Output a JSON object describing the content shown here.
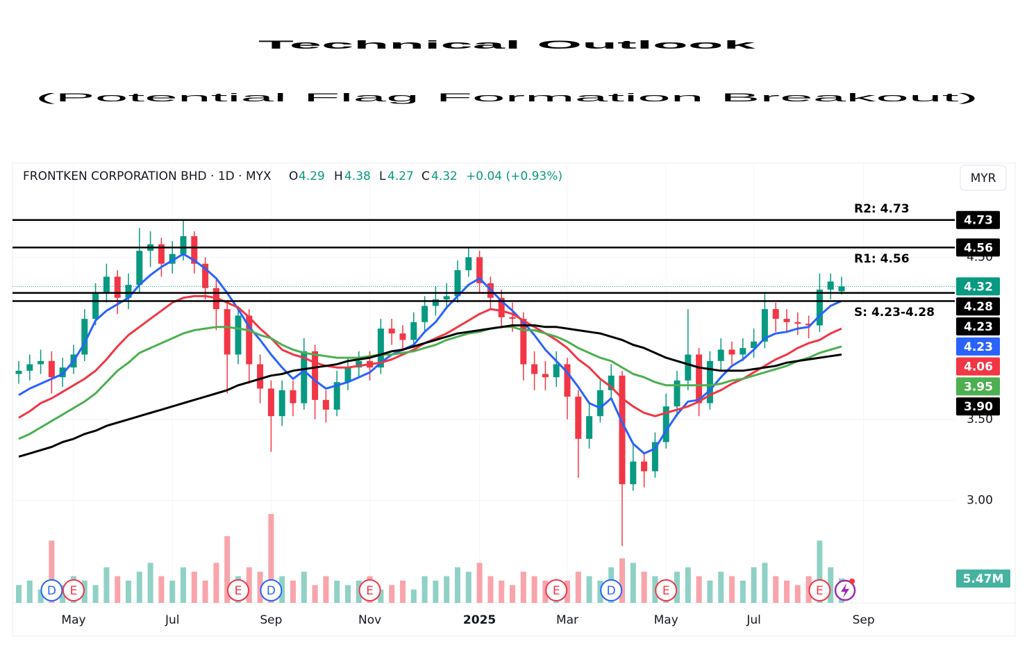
{
  "title": "Technical Outlook",
  "subtitle": "(Potential Flag Formation Breakout)",
  "chart_data": {
    "type": "candlestick",
    "symbol": "FRONTKEN CORPORATION BHD · 1D · MYX",
    "ohlc_letters": [
      "O",
      "H",
      "L",
      "C"
    ],
    "change": "+0.04 (+0.93%)",
    "currency": "MYR",
    "categories": [
      null,
      null,
      null,
      null,
      null,
      "May",
      null,
      null,
      null,
      null,
      null,
      null,
      null,
      null,
      "Jul",
      null,
      null,
      null,
      null,
      null,
      null,
      null,
      null,
      "Sep",
      null,
      null,
      null,
      null,
      null,
      null,
      null,
      null,
      "Nov",
      null,
      null,
      null,
      null,
      null,
      null,
      null,
      null,
      null,
      "2025",
      null,
      null,
      null,
      null,
      null,
      null,
      null,
      "Mar",
      null,
      null,
      null,
      null,
      null,
      null,
      null,
      null,
      "May",
      null,
      null,
      null,
      null,
      null,
      null,
      null,
      "Jul",
      null,
      null,
      null,
      null,
      null,
      null,
      null,
      null,
      null,
      "Sep"
    ],
    "open": [
      3.78,
      3.8,
      3.84,
      3.86,
      3.76,
      3.82,
      3.9,
      4.12,
      4.28,
      4.38,
      4.25,
      4.33,
      4.54,
      4.58,
      4.46,
      4.52,
      4.63,
      4.46,
      4.31,
      4.18,
      3.9,
      4.14,
      3.84,
      3.69,
      3.52,
      3.68,
      3.6,
      3.92,
      3.62,
      3.56,
      3.73,
      3.82,
      3.86,
      3.82,
      4.06,
      4.03,
      3.99,
      4.1,
      4.2,
      4.24,
      4.26,
      4.42,
      4.5,
      4.34,
      4.25,
      4.13,
      4.12,
      3.84,
      3.78,
      3.76,
      3.84,
      3.64,
      3.38,
      3.52,
      3.68,
      3.77,
      3.1,
      3.24,
      3.18,
      3.36,
      3.58,
      3.74,
      3.9,
      3.6,
      3.86,
      3.93,
      3.9,
      3.94,
      3.98,
      4.18,
      4.12,
      4.1,
      4.09,
      4.08,
      4.3,
      4.29,
      null,
      null
    ],
    "high": [
      3.86,
      3.9,
      3.93,
      3.92,
      3.88,
      3.96,
      4.18,
      4.34,
      4.46,
      4.42,
      4.4,
      4.68,
      4.66,
      4.62,
      4.6,
      4.73,
      4.66,
      4.5,
      4.36,
      4.22,
      4.2,
      4.18,
      3.9,
      3.74,
      3.74,
      3.74,
      4.0,
      3.96,
      3.68,
      3.8,
      3.88,
      3.92,
      3.92,
      4.12,
      4.12,
      4.08,
      4.16,
      4.26,
      4.32,
      4.34,
      4.48,
      4.56,
      4.54,
      4.38,
      4.3,
      4.22,
      4.16,
      3.92,
      3.86,
      3.92,
      3.88,
      3.68,
      3.6,
      3.74,
      3.84,
      3.8,
      3.36,
      3.3,
      3.42,
      3.66,
      3.8,
      4.18,
      3.94,
      3.92,
      4.0,
      3.98,
      4.0,
      4.06,
      4.28,
      4.22,
      4.18,
      4.16,
      4.14,
      4.4,
      4.4,
      4.38,
      null,
      null
    ],
    "low": [
      3.72,
      3.74,
      3.78,
      3.66,
      3.7,
      3.78,
      3.86,
      4.08,
      4.22,
      4.15,
      4.18,
      4.28,
      4.44,
      4.38,
      4.4,
      4.48,
      4.4,
      4.24,
      4.05,
      3.66,
      3.84,
      3.72,
      3.6,
      3.3,
      3.46,
      3.52,
      3.56,
      3.5,
      3.48,
      3.52,
      3.68,
      3.76,
      3.74,
      3.78,
      3.96,
      3.92,
      3.94,
      4.04,
      4.14,
      4.18,
      4.22,
      4.38,
      4.28,
      4.18,
      4.06,
      4.04,
      3.74,
      3.68,
      3.68,
      3.7,
      3.5,
      3.14,
      3.32,
      3.48,
      3.62,
      2.72,
      3.06,
      3.08,
      3.14,
      3.32,
      3.52,
      3.68,
      3.52,
      3.56,
      3.8,
      3.84,
      3.86,
      3.88,
      3.94,
      4.04,
      4.04,
      4.02,
      4.0,
      4.04,
      4.24,
      4.27,
      null,
      null
    ],
    "close": [
      3.8,
      3.84,
      3.86,
      3.76,
      3.82,
      3.9,
      4.12,
      4.28,
      4.38,
      4.25,
      4.33,
      4.54,
      4.58,
      4.46,
      4.52,
      4.63,
      4.46,
      4.31,
      4.18,
      3.9,
      4.14,
      3.84,
      3.69,
      3.52,
      3.68,
      3.6,
      3.92,
      3.62,
      3.56,
      3.73,
      3.82,
      3.86,
      3.82,
      4.06,
      4.03,
      3.99,
      4.1,
      4.2,
      4.24,
      4.26,
      4.42,
      4.5,
      4.34,
      4.25,
      4.13,
      4.12,
      3.84,
      3.78,
      3.76,
      3.84,
      3.64,
      3.38,
      3.52,
      3.68,
      3.77,
      3.1,
      3.24,
      3.18,
      3.36,
      3.58,
      3.74,
      3.9,
      3.6,
      3.86,
      3.93,
      3.9,
      3.94,
      3.98,
      4.18,
      4.12,
      4.1,
      4.09,
      4.08,
      4.3,
      4.35,
      4.32,
      null,
      null
    ],
    "up_color": "#089981",
    "down_color": "#f23645",
    "series": [
      {
        "color": "#2962ff",
        "last_label": "4.23",
        "values": [
          3.65,
          3.69,
          3.72,
          3.75,
          3.78,
          3.86,
          3.97,
          4.11,
          4.17,
          4.21,
          4.25,
          4.33,
          4.39,
          4.44,
          4.48,
          4.52,
          4.48,
          4.43,
          4.37,
          4.28,
          4.18,
          4.07,
          3.99,
          3.9,
          3.82,
          3.75,
          3.8,
          3.74,
          3.69,
          3.71,
          3.73,
          3.76,
          3.79,
          3.85,
          3.9,
          3.93,
          3.96,
          4.04,
          4.1,
          4.19,
          4.26,
          4.33,
          4.37,
          4.3,
          4.23,
          4.17,
          4.1,
          4.02,
          3.93,
          3.86,
          3.79,
          3.7,
          3.6,
          3.57,
          3.63,
          3.48,
          3.35,
          3.29,
          3.32,
          3.43,
          3.53,
          3.61,
          3.62,
          3.68,
          3.76,
          3.83,
          3.87,
          3.93,
          4.0,
          4.03,
          4.04,
          4.06,
          4.07,
          4.14,
          4.2,
          4.23,
          null,
          null
        ]
      },
      {
        "color": "#f23645",
        "last_label": "4.06",
        "values": [
          3.51,
          3.55,
          3.6,
          3.63,
          3.67,
          3.71,
          3.75,
          3.8,
          3.87,
          3.95,
          4.02,
          4.07,
          4.12,
          4.17,
          4.22,
          4.25,
          4.26,
          4.26,
          4.25,
          4.22,
          4.19,
          4.13,
          4.06,
          4.0,
          3.93,
          3.9,
          3.88,
          3.85,
          3.83,
          3.82,
          3.82,
          3.83,
          3.84,
          3.85,
          3.87,
          3.9,
          3.93,
          3.97,
          4.0,
          4.03,
          4.07,
          4.11,
          4.15,
          4.18,
          4.17,
          4.15,
          4.11,
          4.07,
          4.03,
          3.99,
          3.94,
          3.87,
          3.82,
          3.75,
          3.7,
          3.63,
          3.58,
          3.54,
          3.52,
          3.54,
          3.56,
          3.58,
          3.61,
          3.65,
          3.68,
          3.72,
          3.75,
          3.79,
          3.83,
          3.87,
          3.9,
          3.94,
          3.97,
          3.99,
          4.03,
          4.06,
          null,
          null
        ]
      },
      {
        "color": "#4caf50",
        "last_label": "3.95",
        "values": [
          3.38,
          3.41,
          3.45,
          3.49,
          3.53,
          3.57,
          3.61,
          3.66,
          3.73,
          3.8,
          3.85,
          3.91,
          3.94,
          3.97,
          4.0,
          4.03,
          4.05,
          4.06,
          4.07,
          4.07,
          4.06,
          4.05,
          4.02,
          4.0,
          3.96,
          3.93,
          3.91,
          3.9,
          3.89,
          3.88,
          3.88,
          3.88,
          3.89,
          3.9,
          3.9,
          3.91,
          3.92,
          3.94,
          3.96,
          3.99,
          4.01,
          4.03,
          4.04,
          4.06,
          4.07,
          4.07,
          4.05,
          4.05,
          4.03,
          4.01,
          3.98,
          3.94,
          3.91,
          3.88,
          3.86,
          3.82,
          3.78,
          3.76,
          3.73,
          3.71,
          3.71,
          3.71,
          3.71,
          3.71,
          3.72,
          3.74,
          3.75,
          3.77,
          3.79,
          3.81,
          3.83,
          3.86,
          3.88,
          3.91,
          3.93,
          3.95,
          null,
          null
        ]
      },
      {
        "color": "#000000",
        "last_label": "3.90",
        "values": [
          3.27,
          3.29,
          3.31,
          3.33,
          3.36,
          3.38,
          3.41,
          3.43,
          3.46,
          3.48,
          3.5,
          3.52,
          3.54,
          3.56,
          3.58,
          3.6,
          3.62,
          3.64,
          3.66,
          3.68,
          3.71,
          3.73,
          3.75,
          3.77,
          3.78,
          3.8,
          3.81,
          3.82,
          3.83,
          3.84,
          3.86,
          3.87,
          3.88,
          3.9,
          3.92,
          3.93,
          3.95,
          3.97,
          3.99,
          4.01,
          4.03,
          4.04,
          4.05,
          4.06,
          4.07,
          4.08,
          4.08,
          4.08,
          4.07,
          4.07,
          4.06,
          4.05,
          4.04,
          4.03,
          4.01,
          3.99,
          3.96,
          3.94,
          3.91,
          3.88,
          3.86,
          3.84,
          3.82,
          3.81,
          3.8,
          3.8,
          3.8,
          3.81,
          3.82,
          3.83,
          3.85,
          3.86,
          3.87,
          3.88,
          3.89,
          3.9,
          null,
          null
        ]
      }
    ],
    "levels": [
      4.73,
      4.56,
      4.28,
      4.23
    ],
    "level_color": "#000000",
    "annotations": [
      "R2: 4.73",
      "R1: 4.56",
      "S: 4.23-4.28"
    ],
    "volume": {
      "ylim": [
        0,
        20
      ],
      "last_label": "5.47M",
      "values": [
        4,
        5,
        3,
        14,
        4,
        6,
        5,
        4,
        8,
        6,
        5,
        7,
        9,
        6,
        5,
        8,
        7,
        5,
        9,
        15,
        6,
        8,
        7,
        20,
        6,
        5,
        7,
        4,
        6,
        5,
        4,
        5,
        6,
        3,
        4,
        5,
        3,
        6,
        5,
        6,
        8,
        7,
        9,
        6,
        5,
        4,
        7,
        6,
        5,
        4,
        5,
        7,
        6,
        5,
        8,
        10,
        9,
        7,
        6,
        5,
        7,
        8,
        6,
        5,
        7,
        6,
        5,
        8,
        9,
        6,
        5,
        4,
        6,
        14,
        8,
        5.47,
        null,
        null
      ]
    },
    "events": [
      {
        "label": "D",
        "at": 3,
        "color": "#2962ff"
      },
      {
        "label": "E",
        "at": 5,
        "color": "#f23645"
      },
      {
        "label": "E",
        "at": 20,
        "color": "#f23645"
      },
      {
        "label": "D",
        "at": 23,
        "color": "#2962ff"
      },
      {
        "label": "E",
        "at": 32,
        "color": "#f23645"
      },
      {
        "label": "E",
        "at": 49,
        "color": "#f23645"
      },
      {
        "label": "D",
        "at": 54,
        "color": "#2962ff"
      },
      {
        "label": "E",
        "at": 59,
        "color": "#f23645"
      },
      {
        "label": "E",
        "at": 73,
        "color": "#f23645"
      }
    ],
    "ylim": [
      2.36,
      5.08
    ],
    "yticks": [
      {
        "value": 3,
        "label": "3.00"
      },
      {
        "value": 3.5,
        "label": "3.50"
      },
      {
        "value": 4.5,
        "label": "4.50"
      }
    ],
    "grid": true
  }
}
